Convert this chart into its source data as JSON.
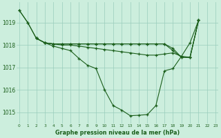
{
  "bg_color": "#cceedd",
  "line_color": "#1a5e1a",
  "grid_color": "#99ccbb",
  "xlabel": "Graphe pression niveau de la mer (hPa)",
  "ylim": [
    1014.5,
    1019.9
  ],
  "xlim": [
    -0.3,
    23.3
  ],
  "yticks": [
    1015,
    1016,
    1017,
    1018,
    1019
  ],
  "xticks": [
    0,
    1,
    2,
    3,
    4,
    5,
    6,
    7,
    8,
    9,
    10,
    11,
    12,
    13,
    14,
    15,
    16,
    17,
    18,
    19,
    20,
    21,
    22,
    23
  ],
  "line1_x": [
    0,
    1,
    2,
    3,
    4,
    5,
    6,
    7,
    8,
    9,
    10,
    11,
    12,
    13,
    14,
    15,
    16,
    17,
    18,
    19,
    20,
    21
  ],
  "line1_y": [
    1019.55,
    1019.0,
    1018.3,
    1018.1,
    1017.95,
    1017.85,
    1017.75,
    1017.4,
    1017.1,
    1016.95,
    1016.0,
    1015.3,
    1015.1,
    1014.85,
    1014.87,
    1014.9,
    1015.3,
    1016.85,
    1016.95,
    1017.5,
    1018.1,
    1019.1
  ],
  "line2_x": [
    0,
    1,
    2,
    3,
    4,
    5,
    6,
    7,
    8,
    9,
    10,
    11,
    12,
    13,
    14,
    15,
    16,
    17,
    18,
    19,
    20,
    21
  ],
  "line2_y": [
    1019.55,
    1019.0,
    1018.3,
    1018.1,
    1018.05,
    1018.05,
    1018.05,
    1018.05,
    1018.05,
    1018.05,
    1018.05,
    1018.05,
    1018.05,
    1018.05,
    1018.05,
    1018.05,
    1018.05,
    1018.05,
    1017.75,
    1017.45,
    1017.45,
    1019.1
  ],
  "line3_x": [
    2,
    3,
    4,
    5,
    6,
    7,
    8,
    9,
    10,
    11,
    12,
    13,
    14,
    15,
    16,
    17,
    18,
    19,
    20,
    21
  ],
  "line3_y": [
    1018.3,
    1018.1,
    1018.05,
    1018.05,
    1018.05,
    1018.05,
    1018.05,
    1018.05,
    1018.05,
    1018.05,
    1018.05,
    1018.05,
    1018.05,
    1018.05,
    1018.05,
    1018.05,
    1017.85,
    1017.45,
    1017.45,
    1019.1
  ],
  "line4_x": [
    2,
    3,
    4,
    5,
    6,
    7,
    8,
    9,
    10,
    11,
    12,
    13,
    14,
    15,
    16,
    17,
    18,
    19,
    20,
    21
  ],
  "line4_y": [
    1018.3,
    1018.1,
    1018.05,
    1018.0,
    1018.0,
    1017.95,
    1017.9,
    1017.85,
    1017.8,
    1017.75,
    1017.7,
    1017.65,
    1017.6,
    1017.55,
    1017.55,
    1017.6,
    1017.65,
    1017.5,
    1017.45,
    1019.1
  ]
}
